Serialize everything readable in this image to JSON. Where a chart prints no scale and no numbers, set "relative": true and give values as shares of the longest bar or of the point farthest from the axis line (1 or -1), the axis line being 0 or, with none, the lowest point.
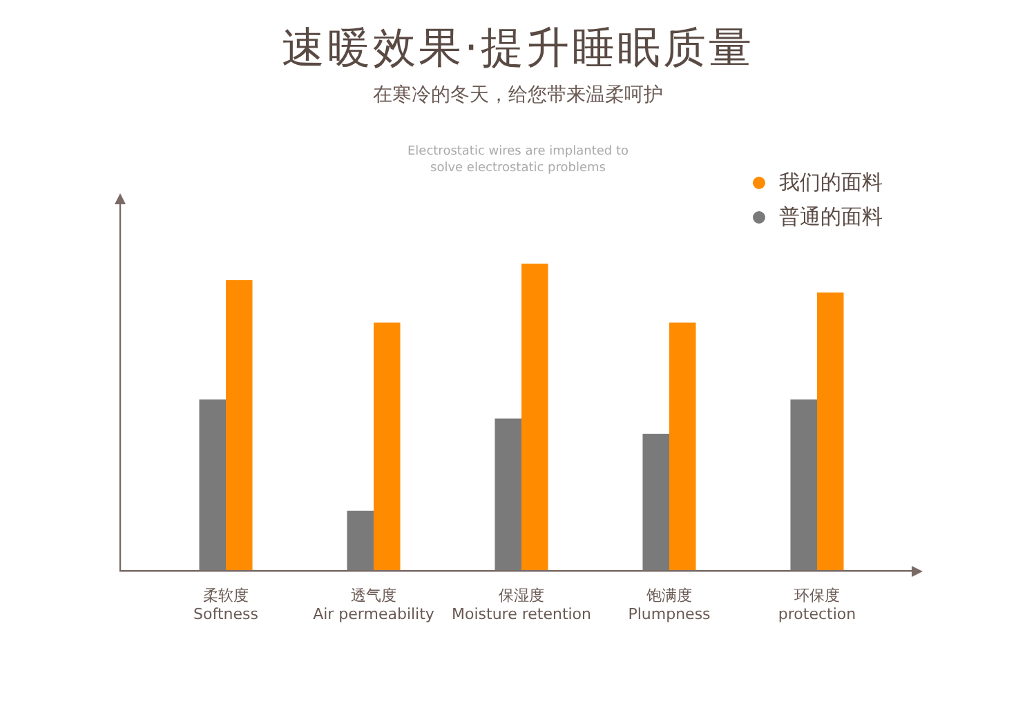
{
  "chart_data": {
    "type": "bar",
    "title": "速暖效果·提升睡眠质量",
    "subtitle": "在寒冷的冬天，给您带来温柔呵护",
    "annotations": [
      "Electrostatic wires are implanted to\nsolve electrostatic problems"
    ],
    "categories": [
      "柔软度\nSoftness",
      "透气度\nAir permeability",
      "保湿度\nMoisture retention",
      "饱满度\nPlumpness",
      "环保度\nprotection"
    ],
    "relative": true,
    "legend": "top right",
    "grid": false,
    "series": [
      {
        "name": "普通的面料",
        "color": "#7a7a7a",
        "values": [
          0.558,
          0.196,
          0.496,
          0.446,
          0.558
        ]
      },
      {
        "name": "我们的面料",
        "color": "#ff8c00",
        "values": [
          0.946,
          0.808,
          1,
          0.808,
          0.906
        ]
      }
    ]
  }
}
